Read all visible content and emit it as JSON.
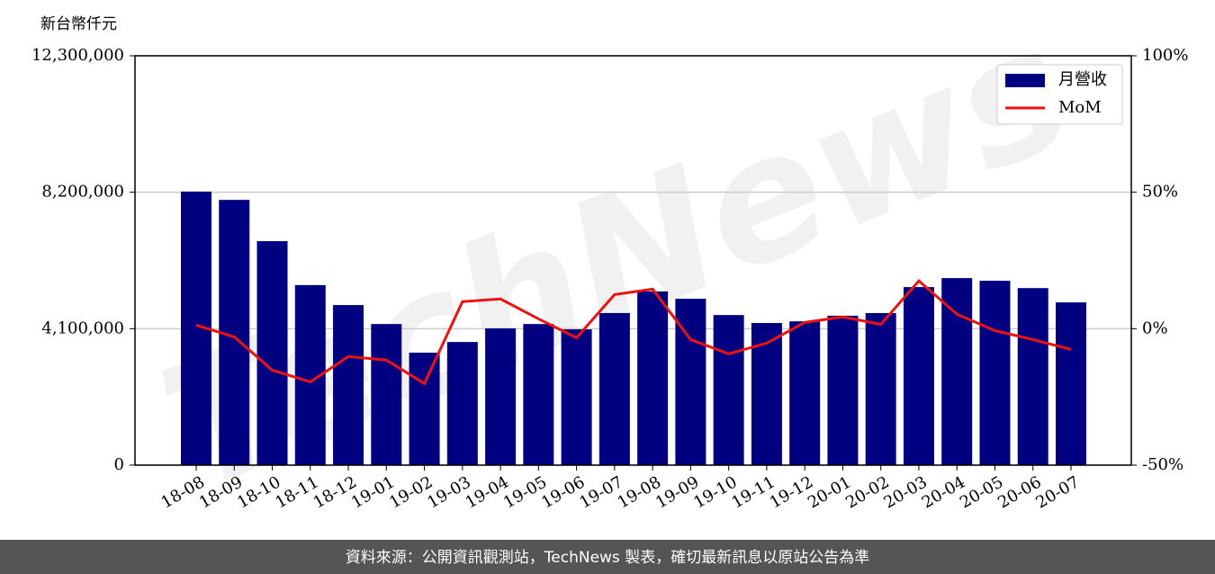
{
  "chart_data": {
    "type": "bar_line",
    "y_label": "新台幣仟元",
    "categories": [
      "18-08",
      "18-09",
      "18-10",
      "18-11",
      "18-12",
      "19-01",
      "19-02",
      "19-03",
      "19-04",
      "19-05",
      "19-06",
      "19-07",
      "19-08",
      "19-09",
      "19-10",
      "19-11",
      "19-12",
      "20-01",
      "20-02",
      "20-03",
      "20-04",
      "20-05",
      "20-06",
      "20-07"
    ],
    "series": [
      {
        "name": "月營收",
        "type": "bar",
        "color": "#000080",
        "values": [
          8220000,
          7970000,
          6730000,
          5410000,
          4810000,
          4240000,
          3380000,
          3700000,
          4110000,
          4240000,
          4080000,
          4570000,
          5220000,
          5000000,
          4510000,
          4270000,
          4320000,
          4490000,
          4570000,
          5350000,
          5620000,
          5540000,
          5320000,
          4890000
        ]
      },
      {
        "name": "MoM",
        "type": "line",
        "axis": "y2",
        "color": "#ee1111",
        "values": [
          1.3,
          -3,
          -15.2,
          -19.5,
          -10.2,
          -11.5,
          -20.1,
          9.9,
          10.9,
          3.6,
          -3.3,
          12.5,
          14.5,
          -4,
          -9.2,
          -5.3,
          2.3,
          4.3,
          1.6,
          17.5,
          5.3,
          -0.7,
          -4,
          -7.6
        ]
      }
    ],
    "ylim": [
      0,
      12300000
    ],
    "yticks": [
      {
        "value": 0,
        "label": "0"
      },
      {
        "value": 4100000,
        "label": "4,100,000"
      },
      {
        "value": 8200000,
        "label": "8,200,000"
      },
      {
        "value": 12300000,
        "label": "12,300,000"
      }
    ],
    "y2lim": [
      -50,
      100
    ],
    "y2ticks": [
      {
        "value": -50,
        "label": "-50%"
      },
      {
        "value": 0,
        "label": "0%"
      },
      {
        "value": 50,
        "label": "50%"
      },
      {
        "value": 100,
        "label": "100%"
      }
    ],
    "grid": true,
    "legend": "upper right",
    "watermark": "TechNews",
    "footer": "資料來源：公開資訊觀測站，TechNews 製表，確切最新訊息以原站公告為準"
  }
}
